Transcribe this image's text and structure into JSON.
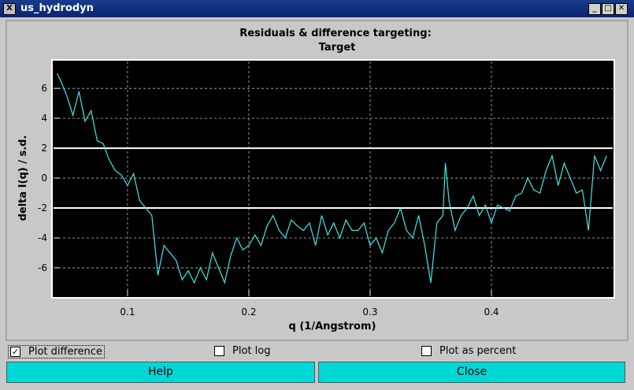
{
  "window": {
    "title": "us_hydrodyn"
  },
  "chart_data": {
    "type": "line",
    "title": "Residuals & difference targeting:",
    "subtitle": "Target",
    "x_label": "q (1/Angstrom)",
    "y_label": "delta I(q) / s.d.",
    "x": [
      0.042,
      0.045,
      0.05,
      0.055,
      0.06,
      0.065,
      0.07,
      0.075,
      0.08,
      0.085,
      0.09,
      0.095,
      0.1,
      0.105,
      0.11,
      0.115,
      0.12,
      0.125,
      0.13,
      0.135,
      0.14,
      0.145,
      0.15,
      0.155,
      0.16,
      0.165,
      0.17,
      0.175,
      0.18,
      0.185,
      0.19,
      0.195,
      0.2,
      0.205,
      0.21,
      0.215,
      0.22,
      0.225,
      0.23,
      0.235,
      0.24,
      0.245,
      0.25,
      0.255,
      0.26,
      0.265,
      0.27,
      0.275,
      0.28,
      0.285,
      0.29,
      0.295,
      0.3,
      0.305,
      0.31,
      0.315,
      0.32,
      0.325,
      0.33,
      0.335,
      0.34,
      0.345,
      0.35,
      0.355,
      0.36,
      0.362,
      0.365,
      0.37,
      0.375,
      0.38,
      0.385,
      0.39,
      0.395,
      0.4,
      0.405,
      0.41,
      0.415,
      0.42,
      0.425,
      0.43,
      0.435,
      0.44,
      0.445,
      0.45,
      0.455,
      0.46,
      0.465,
      0.47,
      0.475,
      0.48,
      0.485,
      0.49,
      0.495
    ],
    "series": [
      {
        "name": "delta",
        "color": "#40e8e8",
        "values": [
          7,
          6.5,
          5.5,
          4.2,
          5.8,
          3.8,
          4.5,
          2.5,
          2.3,
          1.2,
          0.5,
          0.2,
          -0.5,
          0.3,
          -1.5,
          -2,
          -2.5,
          -6.5,
          -4.5,
          -5,
          -5.5,
          -6.8,
          -6.2,
          -7,
          -6,
          -6.8,
          -5,
          -6,
          -7,
          -5.2,
          -4,
          -4.8,
          -4.5,
          -3.8,
          -4.5,
          -3.2,
          -2.5,
          -3.5,
          -4,
          -2.8,
          -3.2,
          -3.5,
          -3,
          -4.5,
          -2.5,
          -3.8,
          -3,
          -4,
          -2.8,
          -3.5,
          -3.5,
          -3,
          -4.5,
          -4,
          -5,
          -3.5,
          -3,
          -2,
          -3.5,
          -4,
          -2.5,
          -4.5,
          -7,
          -3,
          -2.5,
          1,
          -1.5,
          -3.5,
          -2.5,
          -2,
          -1.2,
          -2.5,
          -1.8,
          -3,
          -1.8,
          -2,
          -2.2,
          -1.2,
          -1,
          0,
          -0.8,
          -1,
          0.5,
          1.5,
          -0.5,
          1,
          0,
          -1,
          -0.8,
          -3.5,
          1.5,
          0.5,
          1.5
        ]
      }
    ],
    "reference_lines": [
      2,
      -2
    ],
    "xlim": [
      0.039,
      0.5
    ],
    "xticks": [
      0.1,
      0.2,
      0.3,
      0.4
    ],
    "ylim": [
      -7.9,
      7.8
    ],
    "yticks": [
      6,
      4,
      2,
      0,
      -2,
      -4,
      -6
    ],
    "grid": true
  },
  "controls": {
    "checkboxes": [
      {
        "label": "Plot difference",
        "checked": true
      },
      {
        "label": "Plot log",
        "checked": false
      },
      {
        "label": "Plot as percent",
        "checked": false
      }
    ],
    "buttons": [
      "Help",
      "Close"
    ]
  }
}
